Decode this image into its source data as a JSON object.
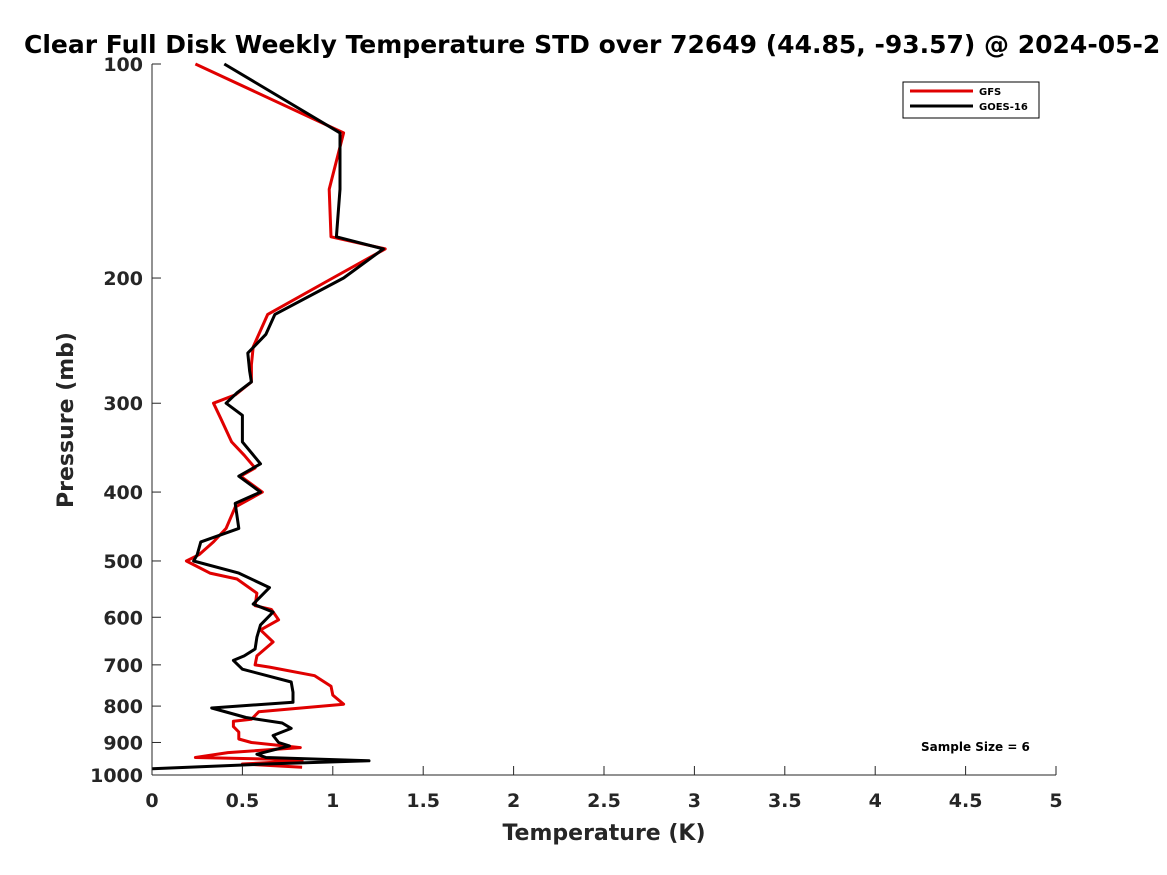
{
  "chart_data": {
    "type": "line",
    "title": "Clear Full Disk Weekly Temperature STD over 72649 (44.85, -93.57) @ 2024-05-2",
    "xlabel": "Temperature (K)",
    "ylabel": "Pressure (mb)",
    "xlim": [
      0,
      5
    ],
    "ylim": [
      100,
      1000
    ],
    "y_scale": "log",
    "y_reversed": true,
    "x_ticks": [
      0,
      0.5,
      1,
      1.5,
      2,
      2.5,
      3,
      3.5,
      4,
      4.5,
      5
    ],
    "x_tick_labels": [
      "0",
      "0.5",
      "1",
      "1.5",
      "2",
      "2.5",
      "3",
      "3.5",
      "4",
      "4.5",
      "5"
    ],
    "y_ticks": [
      100,
      200,
      300,
      400,
      500,
      600,
      700,
      800,
      900,
      1000
    ],
    "y_tick_labels": [
      "100",
      "200",
      "300",
      "400",
      "500",
      "600",
      "700",
      "800",
      "900",
      "1000"
    ],
    "legend_position": "top-right",
    "annotation": "Sample Size = 6",
    "series": [
      {
        "name": "GFS",
        "color": "#e00000",
        "points": [
          [
            0.24,
            100
          ],
          [
            1.06,
            125
          ],
          [
            0.98,
            150
          ],
          [
            0.99,
            175
          ],
          [
            1.29,
            182
          ],
          [
            1.0,
            200
          ],
          [
            0.64,
            225
          ],
          [
            0.56,
            250
          ],
          [
            0.55,
            265
          ],
          [
            0.55,
            280
          ],
          [
            0.46,
            292
          ],
          [
            0.34,
            300
          ],
          [
            0.38,
            315
          ],
          [
            0.44,
            340
          ],
          [
            0.51,
            355
          ],
          [
            0.57,
            370
          ],
          [
            0.49,
            380
          ],
          [
            0.61,
            400
          ],
          [
            0.46,
            420
          ],
          [
            0.41,
            450
          ],
          [
            0.34,
            470
          ],
          [
            0.26,
            490
          ],
          [
            0.19,
            500
          ],
          [
            0.32,
            520
          ],
          [
            0.47,
            530
          ],
          [
            0.58,
            555
          ],
          [
            0.57,
            578
          ],
          [
            0.66,
            585
          ],
          [
            0.7,
            605
          ],
          [
            0.6,
            625
          ],
          [
            0.67,
            650
          ],
          [
            0.58,
            680
          ],
          [
            0.57,
            700
          ],
          [
            0.65,
            705
          ],
          [
            0.9,
            725
          ],
          [
            0.99,
            750
          ],
          [
            1.0,
            772
          ],
          [
            1.06,
            795
          ],
          [
            0.59,
            815
          ],
          [
            0.55,
            835
          ],
          [
            0.45,
            840
          ],
          [
            0.45,
            855
          ],
          [
            0.48,
            870
          ],
          [
            0.48,
            890
          ],
          [
            0.55,
            900
          ],
          [
            0.82,
            915
          ],
          [
            0.42,
            930
          ],
          [
            0.24,
            945
          ],
          [
            0.68,
            950
          ],
          [
            0.83,
            955
          ],
          [
            0.5,
            965
          ],
          [
            0.83,
            975
          ]
        ]
      },
      {
        "name": "GOES-16",
        "color": "#000000",
        "points": [
          [
            0.4,
            100
          ],
          [
            1.04,
            125
          ],
          [
            1.04,
            150
          ],
          [
            1.02,
            175
          ],
          [
            1.28,
            182
          ],
          [
            1.06,
            200
          ],
          [
            0.68,
            225
          ],
          [
            0.63,
            240
          ],
          [
            0.53,
            255
          ],
          [
            0.54,
            270
          ],
          [
            0.55,
            280
          ],
          [
            0.47,
            290
          ],
          [
            0.41,
            300
          ],
          [
            0.5,
            312
          ],
          [
            0.5,
            340
          ],
          [
            0.6,
            365
          ],
          [
            0.48,
            380
          ],
          [
            0.6,
            400
          ],
          [
            0.46,
            415
          ],
          [
            0.48,
            450
          ],
          [
            0.27,
            470
          ],
          [
            0.25,
            490
          ],
          [
            0.23,
            500
          ],
          [
            0.48,
            520
          ],
          [
            0.65,
            545
          ],
          [
            0.56,
            575
          ],
          [
            0.67,
            590
          ],
          [
            0.6,
            615
          ],
          [
            0.58,
            640
          ],
          [
            0.57,
            665
          ],
          [
            0.51,
            680
          ],
          [
            0.45,
            690
          ],
          [
            0.5,
            710
          ],
          [
            0.77,
            740
          ],
          [
            0.78,
            765
          ],
          [
            0.78,
            790
          ],
          [
            0.33,
            805
          ],
          [
            0.52,
            830
          ],
          [
            0.72,
            845
          ],
          [
            0.77,
            860
          ],
          [
            0.67,
            880
          ],
          [
            0.7,
            900
          ],
          [
            0.76,
            910
          ],
          [
            0.58,
            935
          ],
          [
            0.63,
            945
          ],
          [
            1.2,
            955
          ],
          [
            0.63,
            965
          ],
          [
            0.0,
            980
          ]
        ]
      }
    ]
  }
}
